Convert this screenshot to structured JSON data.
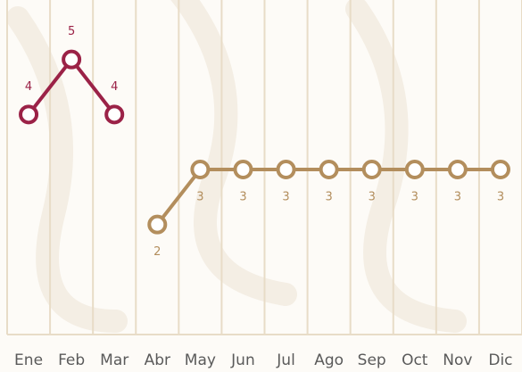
{
  "chart_data": {
    "type": "line",
    "categories": [
      "Ene",
      "Feb",
      "Mar",
      "Abr",
      "May",
      "Jun",
      "Jul",
      "Ago",
      "Sep",
      "Oct",
      "Nov",
      "Dic"
    ],
    "series": [
      {
        "color": "#9b2247",
        "values": [
          4,
          5,
          4,
          null,
          null,
          null,
          null,
          null,
          null,
          null,
          null,
          null
        ]
      },
      {
        "color": "#b38e5d",
        "values": [
          null,
          null,
          null,
          2,
          3,
          3,
          3,
          3,
          3,
          3,
          3,
          3
        ]
      }
    ],
    "ylim": [
      0,
      6
    ],
    "grid": true
  }
}
